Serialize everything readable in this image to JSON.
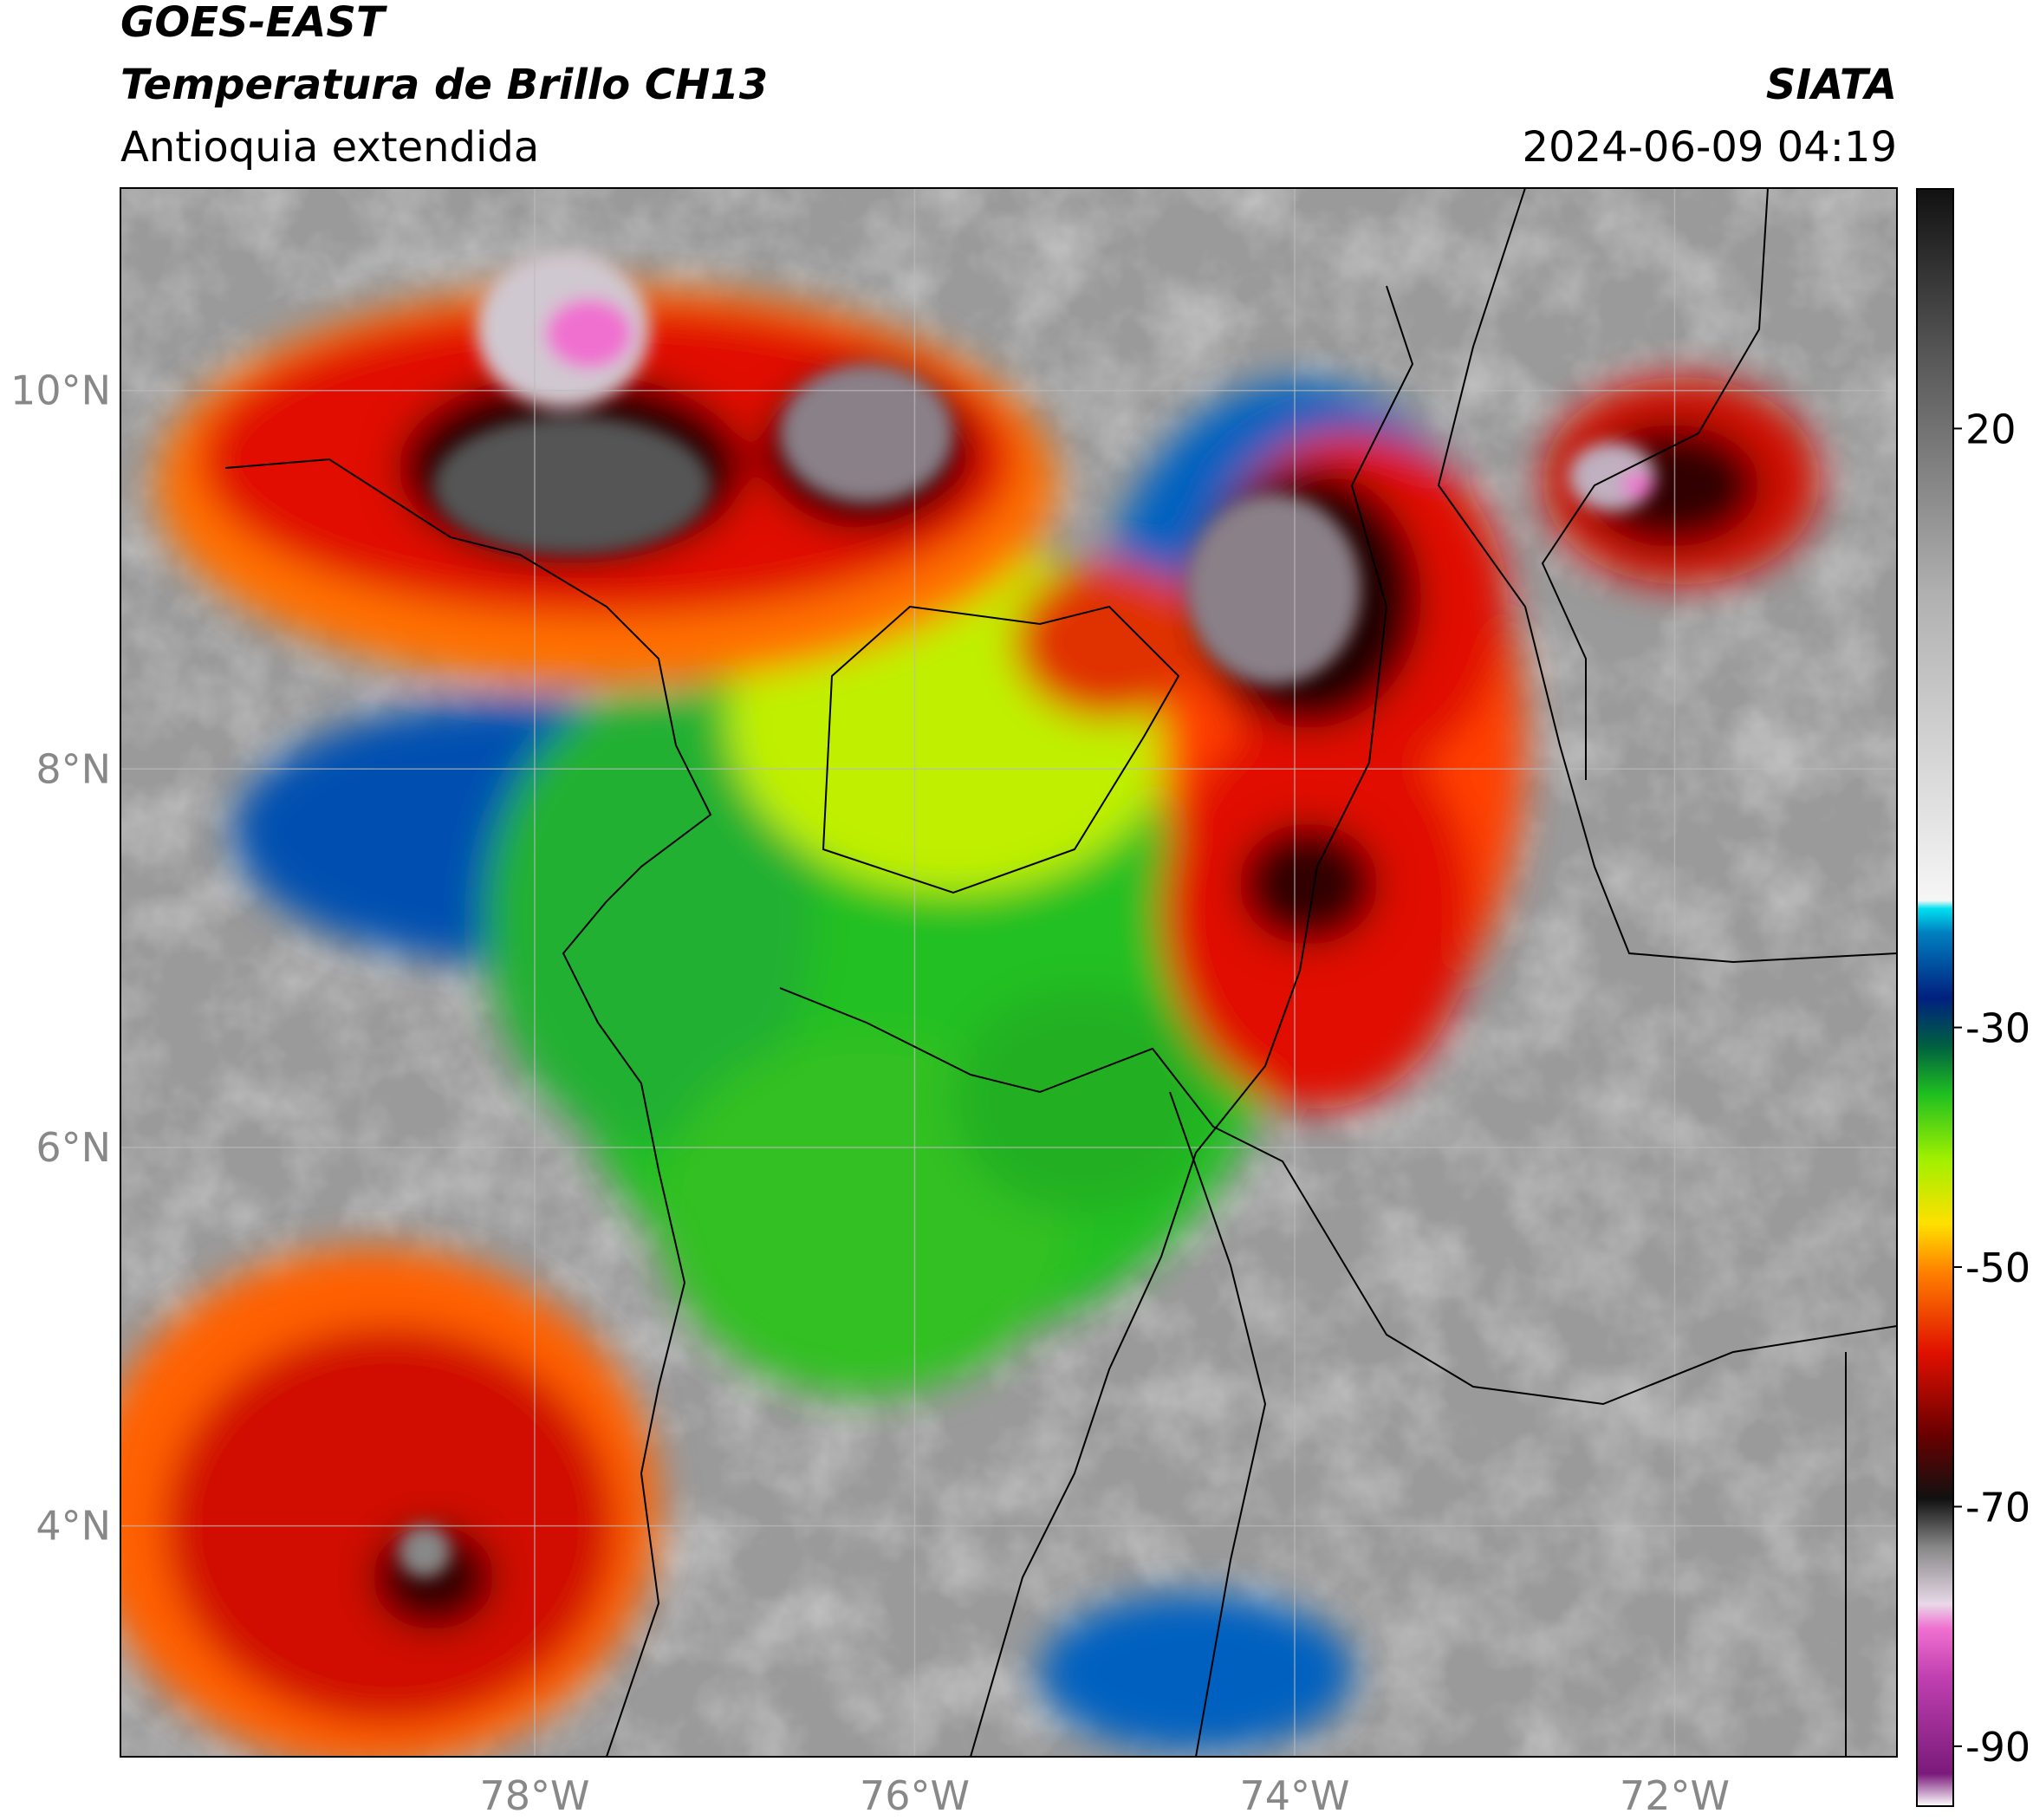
{
  "header": {
    "title": "GOES-EAST",
    "subtitle": "Temperatura de Brillo CH13",
    "region": "Antioquia extendida",
    "source": "SIATA",
    "datetime": "2024-06-09 04:19"
  },
  "map": {
    "lon_range": [
      -80.18,
      -70.83
    ],
    "lat_range": [
      2.78,
      11.07
    ],
    "lon_ticks": [
      {
        "value": -78,
        "label": "78°W"
      },
      {
        "value": -76,
        "label": "76°W"
      },
      {
        "value": -74,
        "label": "74°W"
      },
      {
        "value": -72,
        "label": "72°W"
      }
    ],
    "lat_ticks": [
      {
        "value": 10,
        "label": "10°N"
      },
      {
        "value": 8,
        "label": "8°N"
      },
      {
        "value": 6,
        "label": "6°N"
      },
      {
        "value": 4,
        "label": "4°N"
      }
    ],
    "grid": true
  },
  "colorbar": {
    "range": [
      -95,
      40
    ],
    "ticks": [
      20,
      -30,
      -50,
      -70,
      -90
    ]
  }
}
